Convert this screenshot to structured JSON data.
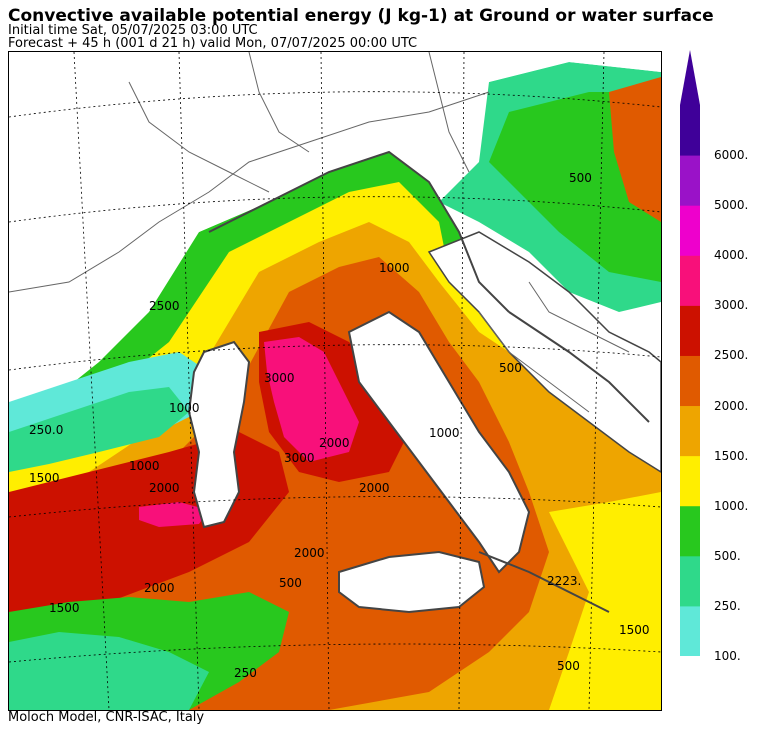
{
  "header": {
    "title": "Convective available potential energy (J kg-1) at Ground or water surface",
    "initial_time": "Initial time  Sat, 05/07/2025  03:00 UTC",
    "forecast": "Forecast  +  45 h  (001 d 21 h)  valid Mon, 07/07/2025 00:00 UTC"
  },
  "footer": {
    "credit": "Moloch Model, CNR-ISAC, Italy"
  },
  "legend": {
    "levels": [
      "100.",
      "250.",
      "500.",
      "1000.",
      "1500.",
      "2000.",
      "2500.",
      "3000.",
      "4000.",
      "5000.",
      "6000."
    ],
    "colors": [
      "#5fe8d8",
      "#2fd98a",
      "#28c81e",
      "#ffee00",
      "#eea500",
      "#e05a00",
      "#cc1100",
      "#f8107a",
      "#ee00cc",
      "#9a12c8",
      "#3f0099"
    ]
  },
  "map": {
    "contour_labels": [
      "250.0",
      "1000",
      "2500",
      "1000",
      "1500",
      "3000",
      "2000",
      "2000",
      "1000",
      "3000",
      "2000",
      "1000",
      "2000",
      "2000",
      "500",
      "500",
      "2223.",
      "1500",
      "500",
      "1500",
      "250",
      "500"
    ]
  }
}
